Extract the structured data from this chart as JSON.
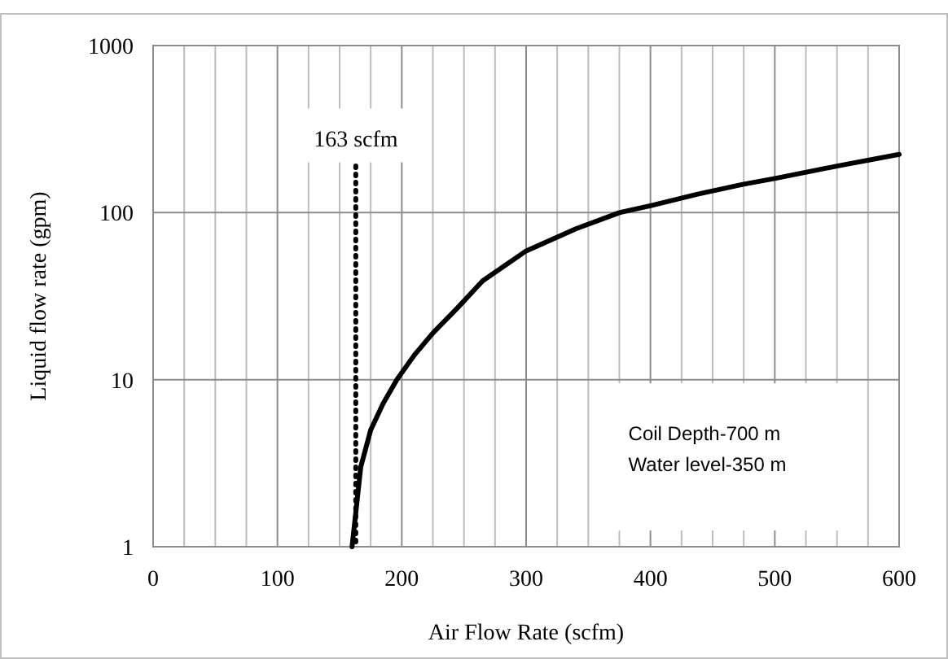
{
  "chart_data": {
    "type": "line",
    "xlabel": "Air Flow Rate (scfm)",
    "ylabel": "Liquid flow rate (gpm)",
    "x": [
      160,
      163,
      167,
      175,
      185,
      196,
      210,
      225,
      245,
      265,
      300,
      340,
      375,
      400,
      438,
      475,
      500,
      550,
      600
    ],
    "series": [
      {
        "color": "#000000",
        "values": [
          1,
          1.6,
          3,
          5,
          7.2,
          10,
          14,
          19,
          27,
          39,
          59,
          80,
          100,
          110,
          129,
          148,
          160,
          190,
          223
        ]
      }
    ],
    "xlim": [
      0,
      600
    ],
    "xticks": [
      0,
      100,
      200,
      300,
      400,
      500,
      600
    ],
    "ylim": [
      1,
      1000
    ],
    "yticks": [
      1,
      10,
      100,
      1000
    ],
    "log": "y",
    "grid": true,
    "marker": "none",
    "line_style": "solid",
    "ref_lines": [
      {
        "axis": "x",
        "value": 163,
        "label": "163 scfm",
        "line_style": "dotted",
        "color": "#000000"
      }
    ],
    "annotations": [
      "Coil Depth-700 m",
      "Water level-350 m"
    ]
  }
}
